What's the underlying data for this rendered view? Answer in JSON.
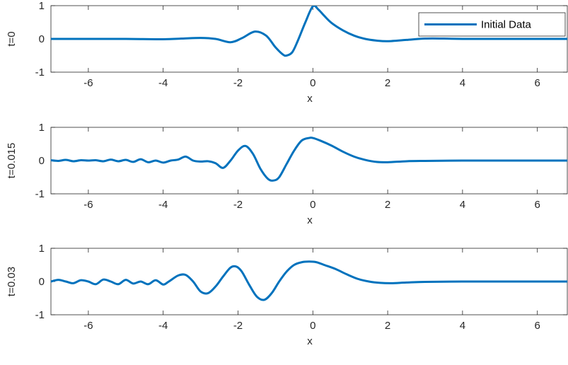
{
  "chart_data": [
    {
      "type": "line",
      "xlabel": "x",
      "ylabel": "t=0",
      "xlim": [
        -7,
        6.8
      ],
      "ylim": [
        -1,
        1
      ],
      "xticks": [
        -6,
        -4,
        -2,
        0,
        2,
        4,
        6
      ],
      "yticks": [
        -1,
        0,
        1
      ],
      "xtick_labels": [
        "-6",
        "-4",
        "-2",
        "0",
        "2",
        "4",
        "6"
      ],
      "ytick_labels": [
        "-1",
        "0",
        "1"
      ],
      "color": "#0072BD",
      "legend": {
        "label": "Initial Data",
        "placement": "top-right"
      },
      "series": [
        {
          "name": "Initial Data",
          "x": [
            -7,
            -6,
            -5,
            -4,
            -3.5,
            -3,
            -2.6,
            -2.2,
            -1.9,
            -1.55,
            -1.25,
            -1.0,
            -0.8,
            -0.7,
            -0.55,
            -0.4,
            -0.2,
            0,
            0.15,
            0.3,
            0.5,
            0.8,
            1.1,
            1.4,
            1.7,
            2.0,
            2.5,
            3.0,
            3.5,
            4,
            5,
            6,
            6.8
          ],
          "y": [
            0,
            0,
            0,
            -0.01,
            0.01,
            0.03,
            0,
            -0.1,
            0.02,
            0.22,
            0.1,
            -0.25,
            -0.47,
            -0.5,
            -0.4,
            -0.05,
            0.5,
            0.98,
            0.88,
            0.7,
            0.48,
            0.26,
            0.1,
            0.0,
            -0.05,
            -0.07,
            -0.03,
            0.01,
            0.01,
            0,
            0,
            0,
            0
          ]
        }
      ]
    },
    {
      "type": "line",
      "xlabel": "x",
      "ylabel": "t=0.015",
      "xlim": [
        -7,
        6.8
      ],
      "ylim": [
        -1,
        1
      ],
      "xticks": [
        -6,
        -4,
        -2,
        0,
        2,
        4,
        6
      ],
      "yticks": [
        -1,
        0,
        1
      ],
      "xtick_labels": [
        "-6",
        "-4",
        "-2",
        "0",
        "2",
        "4",
        "6"
      ],
      "ytick_labels": [
        "-1",
        "0",
        "1"
      ],
      "color": "#0072BD",
      "series": [
        {
          "x": [
            -7,
            -6.8,
            -6.6,
            -6.4,
            -6.2,
            -6.0,
            -5.8,
            -5.6,
            -5.4,
            -5.2,
            -5.0,
            -4.8,
            -4.6,
            -4.4,
            -4.2,
            -4.0,
            -3.8,
            -3.6,
            -3.4,
            -3.2,
            -3.0,
            -2.8,
            -2.6,
            -2.4,
            -2.2,
            -2.0,
            -1.8,
            -1.6,
            -1.4,
            -1.2,
            -1.05,
            -0.9,
            -0.7,
            -0.5,
            -0.3,
            -0.1,
            0.0,
            0.2,
            0.5,
            0.8,
            1.1,
            1.4,
            1.7,
            2.0,
            2.5,
            3.0,
            4,
            5,
            6,
            6.8
          ],
          "y": [
            0.01,
            -0.01,
            0.02,
            -0.02,
            0.01,
            0.0,
            0.01,
            -0.02,
            0.03,
            -0.02,
            0.02,
            -0.04,
            0.04,
            -0.05,
            0.0,
            -0.06,
            0.0,
            0.03,
            0.12,
            0.0,
            -0.03,
            -0.02,
            -0.08,
            -0.22,
            0.0,
            0.3,
            0.44,
            0.2,
            -0.25,
            -0.55,
            -0.6,
            -0.5,
            -0.1,
            0.3,
            0.6,
            0.68,
            0.68,
            0.6,
            0.45,
            0.27,
            0.12,
            0.02,
            -0.04,
            -0.05,
            -0.02,
            -0.01,
            0,
            0,
            0,
            0
          ]
        }
      ]
    },
    {
      "type": "line",
      "xlabel": "x",
      "ylabel": "t=0.03",
      "xlim": [
        -7,
        6.8
      ],
      "ylim": [
        -1,
        1
      ],
      "xticks": [
        -6,
        -4,
        -2,
        0,
        2,
        4,
        6
      ],
      "yticks": [
        -1,
        0,
        1
      ],
      "xtick_labels": [
        "-6",
        "-4",
        "-2",
        "0",
        "2",
        "4",
        "6"
      ],
      "ytick_labels": [
        "-1",
        "0",
        "1"
      ],
      "color": "#0072BD",
      "series": [
        {
          "x": [
            -7,
            -6.8,
            -6.6,
            -6.4,
            -6.2,
            -6.0,
            -5.8,
            -5.6,
            -5.4,
            -5.2,
            -5.0,
            -4.8,
            -4.6,
            -4.4,
            -4.2,
            -4.0,
            -3.85,
            -3.6,
            -3.4,
            -3.2,
            -3.0,
            -2.8,
            -2.6,
            -2.4,
            -2.2,
            -2.05,
            -1.9,
            -1.7,
            -1.5,
            -1.3,
            -1.1,
            -0.9,
            -0.7,
            -0.5,
            -0.3,
            -0.1,
            0.1,
            0.3,
            0.6,
            0.9,
            1.2,
            1.5,
            1.8,
            2.1,
            2.5,
            3.0,
            4,
            5,
            6,
            6.8
          ],
          "y": [
            0.0,
            0.05,
            0.0,
            -0.05,
            0.04,
            0.0,
            -0.08,
            0.06,
            0.0,
            -0.08,
            0.05,
            -0.06,
            0.0,
            -0.08,
            0.04,
            -0.09,
            0.0,
            0.18,
            0.2,
            0.0,
            -0.3,
            -0.35,
            -0.15,
            0.15,
            0.42,
            0.45,
            0.3,
            -0.1,
            -0.45,
            -0.55,
            -0.35,
            0.0,
            0.3,
            0.5,
            0.58,
            0.6,
            0.58,
            0.5,
            0.38,
            0.22,
            0.08,
            0.0,
            -0.04,
            -0.05,
            -0.03,
            -0.01,
            0,
            0,
            0,
            0
          ]
        }
      ]
    }
  ]
}
